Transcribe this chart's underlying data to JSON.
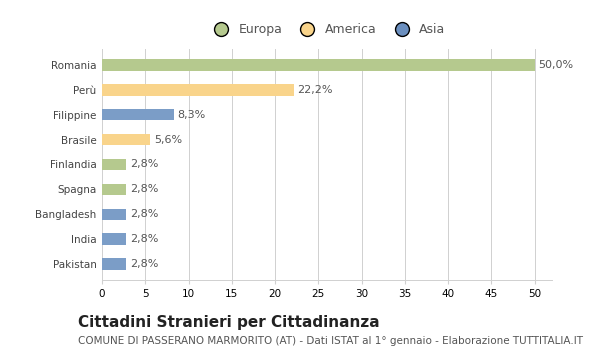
{
  "categories": [
    "Romania",
    "Perù",
    "Filippine",
    "Brasile",
    "Finlandia",
    "Spagna",
    "Bangladesh",
    "India",
    "Pakistan"
  ],
  "values": [
    50.0,
    22.2,
    8.3,
    5.6,
    2.8,
    2.8,
    2.8,
    2.8,
    2.8
  ],
  "labels": [
    "50,0%",
    "22,2%",
    "8,3%",
    "5,6%",
    "2,8%",
    "2,8%",
    "2,8%",
    "2,8%",
    "2,8%"
  ],
  "colors": [
    "#b5c98e",
    "#f9d48b",
    "#7b9dc7",
    "#f9d48b",
    "#b5c98e",
    "#b5c98e",
    "#7b9dc7",
    "#7b9dc7",
    "#7b9dc7"
  ],
  "legend": [
    {
      "label": "Europa",
      "color": "#b5c98e"
    },
    {
      "label": "America",
      "color": "#f9d48b"
    },
    {
      "label": "Asia",
      "color": "#6b8fbf"
    }
  ],
  "xlim": [
    0,
    52
  ],
  "xticks": [
    0,
    5,
    10,
    15,
    20,
    25,
    30,
    35,
    40,
    45,
    50
  ],
  "title": "Cittadini Stranieri per Cittadinanza",
  "subtitle": "COMUNE DI PASSERANO MARMORITO (AT) - Dati ISTAT al 1° gennaio - Elaborazione TUTTITALIA.IT",
  "bg_color": "#ffffff",
  "grid_color": "#d0d0d0",
  "title_fontsize": 11,
  "subtitle_fontsize": 7.5,
  "label_fontsize": 8,
  "tick_fontsize": 7.5,
  "legend_fontsize": 9,
  "bar_height": 0.45
}
